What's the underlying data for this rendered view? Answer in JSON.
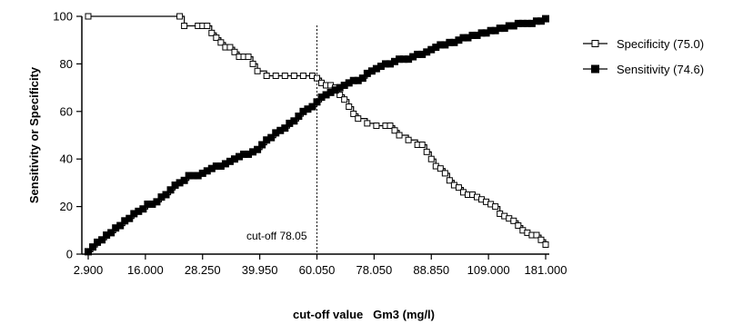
{
  "chart_data": {
    "type": "line",
    "xlabel": "cut-off value   Gm3 (mg/l)",
    "ylabel": "Sensitivity or Specificity",
    "ylim": [
      0,
      100
    ],
    "yticks": [
      "0",
      "20",
      "40",
      "60",
      "80",
      "100"
    ],
    "xticks": [
      "2.900",
      "16.000",
      "28.250",
      "39.950",
      "60.050",
      "78.050",
      "88.850",
      "109.000",
      "181.000"
    ],
    "grid": false,
    "legend_position": "right",
    "cutoff": {
      "x": 0.5,
      "label": "cut-off 78.05"
    },
    "series": [
      {
        "name": "Specificity (75.0)",
        "marker": "open-square",
        "color": "#000000",
        "x": [
          0.0,
          0.2,
          0.21,
          0.24,
          0.25,
          0.26,
          0.27,
          0.28,
          0.29,
          0.3,
          0.31,
          0.32,
          0.33,
          0.34,
          0.35,
          0.36,
          0.37,
          0.39,
          0.41,
          0.43,
          0.45,
          0.47,
          0.49,
          0.5,
          0.51,
          0.52,
          0.53,
          0.54,
          0.55,
          0.56,
          0.57,
          0.58,
          0.59,
          0.61,
          0.63,
          0.65,
          0.66,
          0.67,
          0.68,
          0.7,
          0.72,
          0.73,
          0.74,
          0.75,
          0.76,
          0.77,
          0.78,
          0.79,
          0.8,
          0.81,
          0.82,
          0.83,
          0.84,
          0.85,
          0.86,
          0.87,
          0.88,
          0.89,
          0.9,
          0.91,
          0.92,
          0.93,
          0.94,
          0.95,
          0.96,
          0.97,
          0.98,
          0.99,
          1.0
        ],
        "y": [
          100,
          100,
          96,
          96,
          96,
          96,
          93,
          91,
          89,
          87,
          87,
          85,
          83,
          83,
          83,
          80,
          77,
          75,
          75,
          75,
          75,
          75,
          75,
          74,
          72,
          71,
          71,
          70,
          67,
          65,
          62,
          59,
          57,
          55,
          54,
          54,
          54,
          52,
          50,
          48,
          46,
          46,
          43,
          40,
          37,
          36,
          34,
          31,
          29,
          28,
          26,
          25,
          25,
          24,
          23,
          22,
          21,
          20,
          17,
          16,
          15,
          14,
          12,
          10,
          9,
          8,
          8,
          6,
          4
        ]
      },
      {
        "name": "Sensitivity (74.6)",
        "marker": "filled-square",
        "color": "#000000",
        "x": [
          0.0,
          0.01,
          0.02,
          0.03,
          0.04,
          0.05,
          0.06,
          0.07,
          0.08,
          0.09,
          0.1,
          0.11,
          0.12,
          0.13,
          0.14,
          0.15,
          0.16,
          0.17,
          0.18,
          0.19,
          0.2,
          0.21,
          0.22,
          0.23,
          0.24,
          0.25,
          0.26,
          0.27,
          0.28,
          0.29,
          0.3,
          0.31,
          0.32,
          0.33,
          0.34,
          0.35,
          0.36,
          0.37,
          0.38,
          0.39,
          0.4,
          0.41,
          0.42,
          0.43,
          0.44,
          0.45,
          0.46,
          0.47,
          0.48,
          0.49,
          0.5,
          0.51,
          0.52,
          0.53,
          0.54,
          0.55,
          0.56,
          0.57,
          0.58,
          0.59,
          0.6,
          0.61,
          0.62,
          0.63,
          0.64,
          0.65,
          0.66,
          0.67,
          0.68,
          0.69,
          0.7,
          0.71,
          0.72,
          0.73,
          0.74,
          0.75,
          0.76,
          0.77,
          0.78,
          0.79,
          0.8,
          0.81,
          0.82,
          0.83,
          0.84,
          0.85,
          0.86,
          0.87,
          0.88,
          0.89,
          0.9,
          0.91,
          0.92,
          0.93,
          0.94,
          0.95,
          0.96,
          0.97,
          0.98,
          0.99,
          1.0
        ],
        "y": [
          1,
          3,
          5,
          6,
          8,
          9,
          11,
          12,
          14,
          15,
          17,
          18,
          19,
          21,
          21,
          22,
          24,
          25,
          27,
          29,
          30,
          31,
          33,
          33,
          33,
          34,
          35,
          36,
          37,
          37,
          38,
          39,
          40,
          41,
          42,
          42,
          43,
          44,
          46,
          48,
          49,
          51,
          52,
          53,
          55,
          56,
          58,
          60,
          61,
          62,
          64,
          66,
          67,
          68,
          69,
          70,
          71,
          72,
          73,
          73,
          74,
          76,
          77,
          78,
          79,
          80,
          80,
          81,
          82,
          82,
          82,
          83,
          84,
          84,
          85,
          86,
          87,
          88,
          88,
          89,
          89,
          90,
          91,
          91,
          92,
          92,
          93,
          93,
          94,
          94,
          95,
          95,
          96,
          96,
          97,
          97,
          97,
          97,
          98,
          98,
          99
        ]
      }
    ]
  }
}
